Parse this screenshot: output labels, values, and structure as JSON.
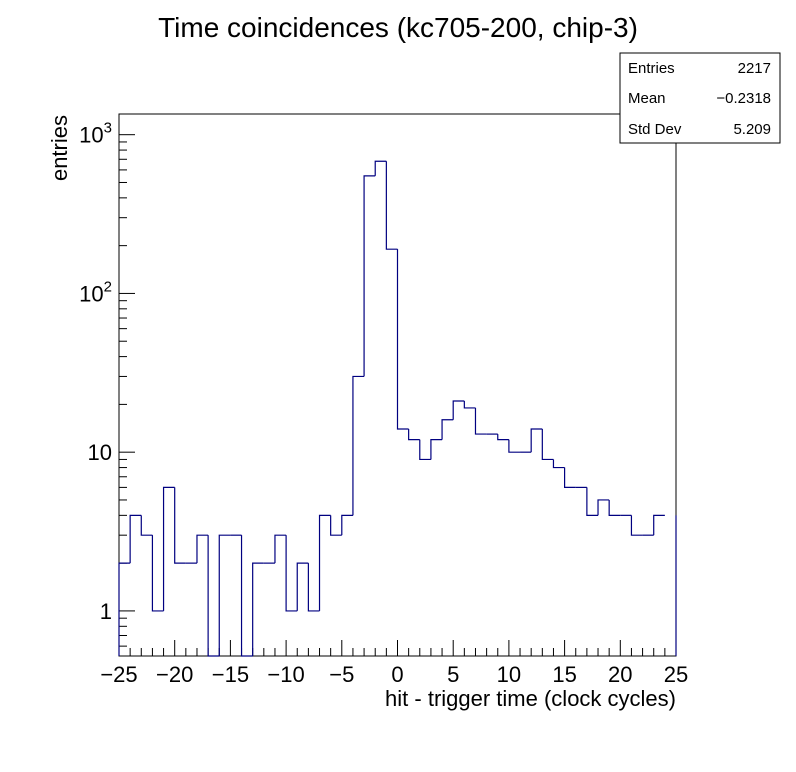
{
  "chart_data": {
    "type": "histogram",
    "title": "Time coincidences (kc705-200, chip-3)",
    "xlabel": "hit - trigger time (clock cycles)",
    "ylabel": "entries",
    "xlim": [
      -25,
      25
    ],
    "ylim": [
      0.52,
      1350
    ],
    "log_y": true,
    "bin_width": 1,
    "grid": false,
    "line_color": "#000080",
    "x_ticks": [
      {
        "v": -25,
        "label": "−25"
      },
      {
        "v": -20,
        "label": "−20"
      },
      {
        "v": -15,
        "label": "−15"
      },
      {
        "v": -10,
        "label": "−10"
      },
      {
        "v": -5,
        "label": "−5"
      },
      {
        "v": 0,
        "label": "0"
      },
      {
        "v": 5,
        "label": "5"
      },
      {
        "v": 10,
        "label": "10"
      },
      {
        "v": 15,
        "label": "15"
      },
      {
        "v": 20,
        "label": "20"
      },
      {
        "v": 25,
        "label": "25"
      }
    ],
    "y_ticks": [
      {
        "v": 1,
        "base": "1",
        "exp": ""
      },
      {
        "v": 10,
        "base": "10",
        "exp": ""
      },
      {
        "v": 100,
        "base": "10",
        "exp": "2"
      },
      {
        "v": 1000,
        "base": "10",
        "exp": "3"
      }
    ],
    "bin_edges_start": -25,
    "values": [
      2,
      4,
      3,
      1,
      6,
      2,
      2,
      3,
      0,
      3,
      3,
      0,
      2,
      2,
      3,
      1,
      2,
      1,
      4,
      3,
      4,
      30,
      550,
      680,
      190,
      14,
      12,
      9,
      12,
      16,
      21,
      19,
      13,
      13,
      12,
      10,
      10,
      14,
      9,
      8,
      6,
      6,
      4,
      5,
      4,
      4,
      3,
      3,
      4
    ],
    "stats": {
      "entries_label": "Entries",
      "entries": "2217",
      "mean_label": "Mean",
      "mean": "−0.2318",
      "stddev_label": "Std Dev",
      "stddev": "5.209"
    }
  }
}
